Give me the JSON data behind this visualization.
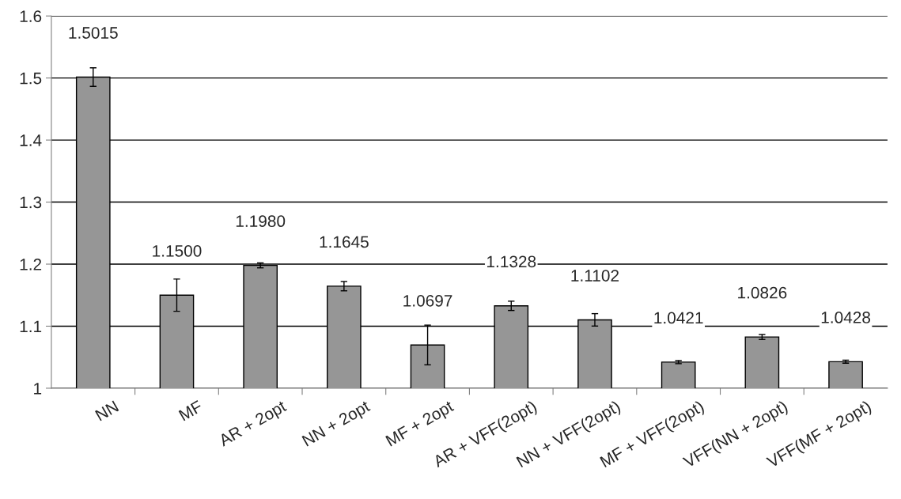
{
  "chart_data": {
    "type": "bar",
    "categories": [
      "NN",
      "MF",
      "AR + 2opt",
      "NN + 2opt",
      "MF + 2opt",
      "AR + VFF(2opt)",
      "NN + VFF(2opt)",
      "MF + VFF(2opt)",
      "VFF(NN + 2opt)",
      "VFF(MF + 2opt)"
    ],
    "values": [
      1.5015,
      1.15,
      1.198,
      1.1645,
      1.0697,
      1.1328,
      1.1102,
      1.0421,
      1.0826,
      1.0428
    ],
    "value_labels": [
      "1.5015",
      "1.1500",
      "1.1980",
      "1.1645",
      "1.0697",
      "1.1328",
      "1.1102",
      "1.0421",
      "1.0826",
      "1.0428"
    ],
    "errors": [
      0.015,
      0.026,
      0.004,
      0.0075,
      0.032,
      0.0075,
      0.01,
      0.0025,
      0.004,
      0.0025
    ],
    "color": "#969696",
    "ylim": [
      1,
      1.6
    ],
    "yticks": [
      1,
      1.1,
      1.2,
      1.3,
      1.4,
      1.5,
      1.6
    ],
    "grid": "y",
    "legend": false
  }
}
